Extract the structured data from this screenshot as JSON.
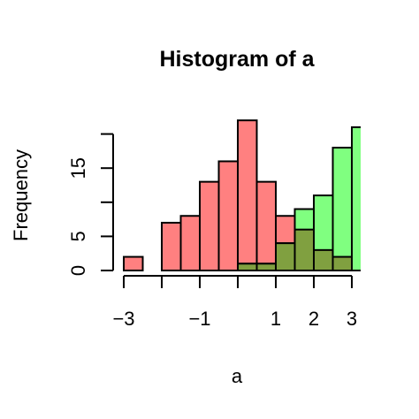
{
  "chart_data": {
    "type": "bar",
    "subtype": "overlaid-histogram",
    "title": "Histogram of a",
    "xlabel": "a",
    "ylabel": "Frequency",
    "x_ticks": [
      {
        "value": -3,
        "label": "−3"
      },
      {
        "value": -2,
        "label": ""
      },
      {
        "value": -1,
        "label": "−1"
      },
      {
        "value": 0,
        "label": ""
      },
      {
        "value": 1,
        "label": "1"
      },
      {
        "value": 2,
        "label": "2"
      },
      {
        "value": 3,
        "label": "3"
      }
    ],
    "y_ticks": [
      {
        "value": 0,
        "label": "0"
      },
      {
        "value": 5,
        "label": "5"
      },
      {
        "value": 10,
        "label": ""
      },
      {
        "value": 15,
        "label": "15"
      },
      {
        "value": 20,
        "label": ""
      }
    ],
    "xlim": [
      -3,
      3
    ],
    "ylim": [
      0,
      20
    ],
    "series": [
      {
        "color": "#ff8080",
        "bins": [
          {
            "x0": -3.0,
            "x1": -2.5,
            "count": 2
          },
          {
            "x0": -2.5,
            "x1": -2.0,
            "count": 0
          },
          {
            "x0": -2.0,
            "x1": -1.5,
            "count": 7
          },
          {
            "x0": -1.5,
            "x1": -1.0,
            "count": 8
          },
          {
            "x0": -1.0,
            "x1": -0.5,
            "count": 13
          },
          {
            "x0": -0.5,
            "x1": 0.0,
            "count": 16
          },
          {
            "x0": 0.0,
            "x1": 0.5,
            "count": 22
          },
          {
            "x0": 0.5,
            "x1": 1.0,
            "count": 13
          },
          {
            "x0": 1.0,
            "x1": 1.5,
            "count": 8
          },
          {
            "x0": 1.5,
            "x1": 2.0,
            "count": 6
          },
          {
            "x0": 2.0,
            "x1": 2.5,
            "count": 3
          },
          {
            "x0": 2.5,
            "x1": 3.0,
            "count": 2
          }
        ]
      },
      {
        "color": "#80ff80",
        "bins": [
          {
            "x0": 0.0,
            "x1": 0.5,
            "count": 1
          },
          {
            "x0": 0.5,
            "x1": 1.0,
            "count": 1
          },
          {
            "x0": 1.0,
            "x1": 1.5,
            "count": 4
          },
          {
            "x0": 1.5,
            "x1": 2.0,
            "count": 9
          },
          {
            "x0": 2.0,
            "x1": 2.5,
            "count": 11
          },
          {
            "x0": 2.5,
            "x1": 3.0,
            "count": 18
          },
          {
            "x0": 3.0,
            "x1": 3.5,
            "count": 21
          }
        ]
      }
    ],
    "overlap_color": "#80a040",
    "grid": false,
    "legend": "none"
  }
}
